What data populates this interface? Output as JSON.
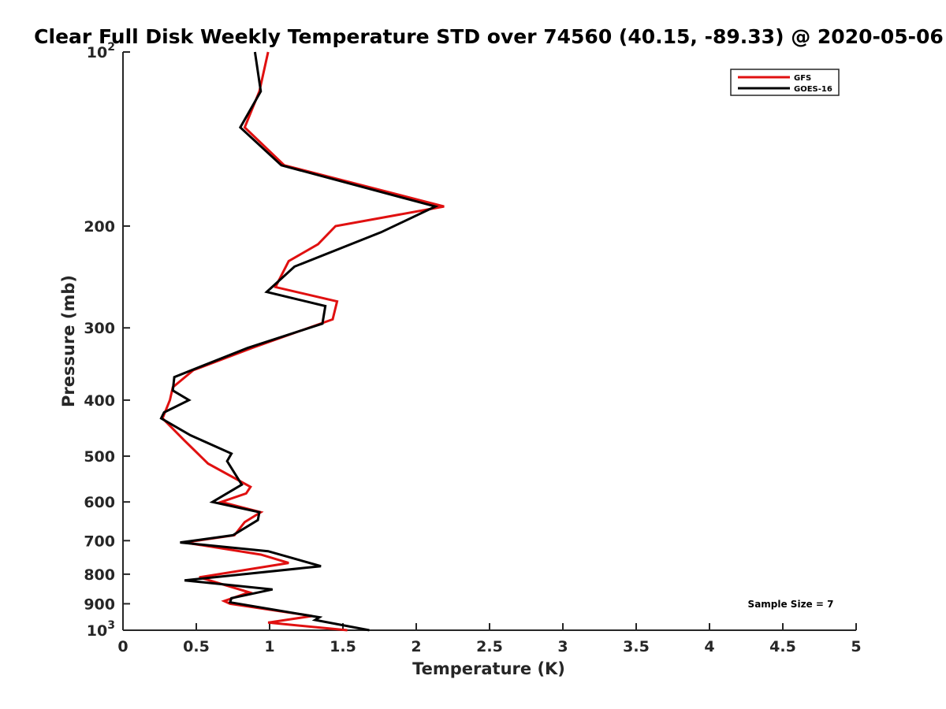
{
  "chart_data": {
    "type": "line",
    "title": "Clear Full Disk Weekly Temperature STD over 74560 (40.15, -89.33) @ 2020-05-06",
    "xlabel": "Temperature (K)",
    "ylabel": "Pressure (mb)",
    "xlim": [
      0,
      5
    ],
    "ylim": [
      100,
      1000
    ],
    "y_scale": "log",
    "y_reversed": true,
    "grid": false,
    "legend_position": "top-right",
    "x_ticks": [
      "0",
      "0.5",
      "1",
      "1.5",
      "2",
      "2.5",
      "3",
      "3.5",
      "4",
      "4.5",
      "5"
    ],
    "y_ticks": [
      {
        "value": 100,
        "base": "10",
        "exp": "2"
      },
      {
        "value": 200,
        "label": "200"
      },
      {
        "value": 300,
        "label": "300"
      },
      {
        "value": 400,
        "label": "400"
      },
      {
        "value": 500,
        "label": "500"
      },
      {
        "value": 600,
        "label": "600"
      },
      {
        "value": 700,
        "label": "700"
      },
      {
        "value": 800,
        "label": "800"
      },
      {
        "value": 900,
        "label": "900"
      },
      {
        "value": 1000,
        "base": "10",
        "exp": "3"
      }
    ],
    "annotation": "Sample Size = 7",
    "series": [
      {
        "name": "GFS",
        "color": "#e01010",
        "x": [
          0.99,
          0.93,
          0.83,
          1.1,
          2.19,
          1.45,
          1.33,
          1.13,
          1.04,
          1.46,
          1.43,
          0.88,
          0.48,
          0.34,
          0.32,
          0.27,
          0.42,
          0.58,
          0.87,
          0.84,
          0.67,
          0.94,
          0.83,
          0.76,
          0.42,
          0.94,
          1.13,
          0.52,
          0.86,
          0.69,
          0.73,
          1.29,
          0.99,
          1.53
        ],
        "y": [
          100,
          117,
          135,
          157,
          185,
          200,
          215,
          230,
          255,
          270,
          290,
          325,
          355,
          380,
          400,
          430,
          470,
          515,
          565,
          580,
          600,
          625,
          650,
          685,
          705,
          740,
          765,
          810,
          860,
          890,
          900,
          945,
          970,
          1000
        ]
      },
      {
        "name": "GOES-16",
        "color": "#000000",
        "x": [
          0.9,
          0.94,
          0.8,
          1.08,
          2.13,
          1.76,
          1.17,
          0.98,
          1.38,
          1.36,
          0.85,
          0.53,
          0.35,
          0.34,
          0.45,
          0.28,
          0.26,
          0.46,
          0.74,
          0.71,
          0.81,
          0.61,
          0.93,
          0.92,
          0.75,
          0.39,
          0.99,
          1.35,
          0.42,
          1.02,
          0.74,
          0.73,
          1.34,
          1.31,
          1.68
        ],
        "y": [
          100,
          117,
          135,
          157,
          185,
          205,
          235,
          260,
          275,
          295,
          325,
          350,
          365,
          385,
          400,
          420,
          430,
          460,
          495,
          510,
          560,
          600,
          625,
          645,
          685,
          705,
          730,
          775,
          820,
          850,
          880,
          895,
          950,
          960,
          1000
        ]
      }
    ]
  }
}
